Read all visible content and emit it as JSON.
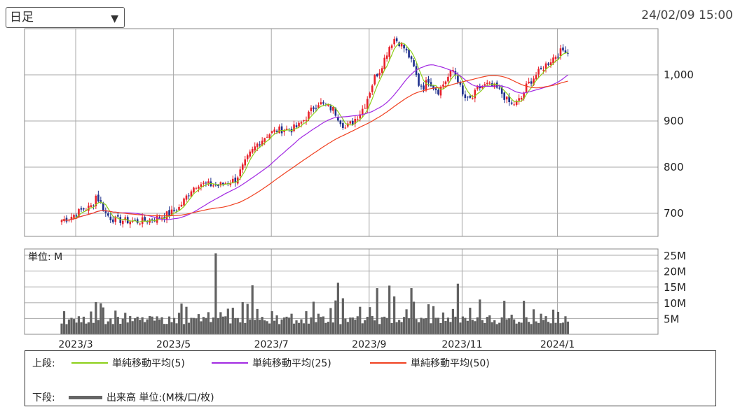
{
  "period_select": {
    "value": "日足",
    "options": [
      "日足"
    ]
  },
  "timestamp": "24/02/09 15:00",
  "colors": {
    "up": "#e8202a",
    "down": "#1d2f8c",
    "sma5": "#8ccf18",
    "sma25": "#a22ae2",
    "sma50": "#f04020",
    "volume": "#616161",
    "grid": "#a8a8a8"
  },
  "chart_data": {
    "type": "candlestick",
    "price_axis": {
      "range": [
        650,
        1100
      ],
      "ticks": [
        700,
        800,
        900,
        1000
      ],
      "tick_labels": [
        "700",
        "800",
        "900",
        "1,000"
      ]
    },
    "volume_axis": {
      "unit_label": "単位: M",
      "range": [
        0,
        27
      ],
      "ticks": [
        5,
        10,
        15,
        20,
        25
      ],
      "tick_labels": [
        "5M",
        "10M",
        "15M",
        "20M",
        "25M"
      ]
    },
    "x_axis": {
      "tick_labels": [
        "2023/3",
        "2023/5",
        "2023/7",
        "2023/9",
        "2023/11",
        "2024/1"
      ],
      "session_positions": [
        0,
        40,
        80,
        120,
        158,
        197
      ]
    },
    "price_anchors": [
      [
        0,
        685
      ],
      [
        3,
        690
      ],
      [
        6,
        700
      ],
      [
        9,
        710
      ],
      [
        11,
        712
      ],
      [
        12,
        715
      ],
      [
        13,
        722
      ],
      [
        14,
        738
      ],
      [
        16,
        722
      ],
      [
        18,
        700
      ],
      [
        20,
        690
      ],
      [
        22,
        686
      ],
      [
        26,
        684
      ],
      [
        30,
        682
      ],
      [
        34,
        684
      ],
      [
        38,
        688
      ],
      [
        42,
        695
      ],
      [
        45,
        702
      ],
      [
        48,
        712
      ],
      [
        50,
        728
      ],
      [
        53,
        752
      ],
      [
        56,
        765
      ],
      [
        60,
        762
      ],
      [
        64,
        760
      ],
      [
        68,
        768
      ],
      [
        71,
        772
      ],
      [
        74,
        800
      ],
      [
        77,
        828
      ],
      [
        80,
        850
      ],
      [
        84,
        870
      ],
      [
        88,
        880
      ],
      [
        91,
        882
      ],
      [
        94,
        882
      ],
      [
        97,
        890
      ],
      [
        100,
        908
      ],
      [
        103,
        930
      ],
      [
        105,
        940
      ],
      [
        108,
        932
      ],
      [
        111,
        925
      ],
      [
        114,
        900
      ],
      [
        116,
        885
      ],
      [
        119,
        898
      ],
      [
        122,
        918
      ],
      [
        124,
        935
      ],
      [
        126,
        965
      ],
      [
        128,
        995
      ],
      [
        130,
        1010
      ],
      [
        132,
        1035
      ],
      [
        134,
        1062
      ],
      [
        136,
        1078
      ],
      [
        138,
        1070
      ],
      [
        140,
        1058
      ],
      [
        142,
        1040
      ],
      [
        144,
        1015
      ],
      [
        146,
        980
      ],
      [
        148,
        975
      ],
      [
        150,
        990
      ],
      [
        152,
        975
      ],
      [
        154,
        965
      ],
      [
        156,
        980
      ],
      [
        158,
        995
      ],
      [
        160,
        1010
      ],
      [
        162,
        990
      ],
      [
        164,
        955
      ],
      [
        166,
        945
      ],
      [
        168,
        950
      ],
      [
        170,
        970
      ],
      [
        172,
        975
      ],
      [
        174,
        978
      ],
      [
        176,
        975
      ],
      [
        178,
        970
      ],
      [
        180,
        960
      ],
      [
        182,
        945
      ],
      [
        184,
        935
      ],
      [
        186,
        940
      ],
      [
        188,
        950
      ],
      [
        190,
        975
      ],
      [
        192,
        988
      ],
      [
        194,
        1000
      ],
      [
        196,
        1010
      ],
      [
        198,
        1022
      ],
      [
        200,
        1032
      ],
      [
        202,
        1042
      ],
      [
        204,
        1050
      ],
      [
        206,
        1055
      ],
      [
        207,
        1048
      ]
    ],
    "volume_baseline_M": 3.2,
    "volume_spikes": [
      [
        1,
        7.3
      ],
      [
        12,
        7.2
      ],
      [
        14,
        10.2
      ],
      [
        16,
        9.8
      ],
      [
        17,
        8.5
      ],
      [
        22,
        7.5
      ],
      [
        26,
        6.8
      ],
      [
        37,
        5.6
      ],
      [
        48,
        6.8
      ],
      [
        49,
        9.7
      ],
      [
        51,
        8.7
      ],
      [
        56,
        6.4
      ],
      [
        60,
        7
      ],
      [
        63,
        25.6
      ],
      [
        65,
        7
      ],
      [
        68,
        8.1
      ],
      [
        70,
        8.4
      ],
      [
        74,
        10.2
      ],
      [
        76,
        9.6
      ],
      [
        78,
        15.5
      ],
      [
        80,
        8
      ],
      [
        86,
        7.3
      ],
      [
        88,
        6
      ],
      [
        94,
        6.5
      ],
      [
        100,
        7.3
      ],
      [
        103,
        10.3
      ],
      [
        105,
        6.5
      ],
      [
        106,
        5.5
      ],
      [
        110,
        8.3
      ],
      [
        112,
        10.7
      ],
      [
        113,
        16.3
      ],
      [
        115,
        11.4
      ],
      [
        122,
        8.7
      ],
      [
        126,
        8.6
      ],
      [
        129,
        14.6
      ],
      [
        134,
        15.4
      ],
      [
        136,
        12
      ],
      [
        141,
        7.9
      ],
      [
        143,
        14.6
      ],
      [
        144,
        10.3
      ],
      [
        150,
        9.5
      ],
      [
        152,
        8.9
      ],
      [
        156,
        6.9
      ],
      [
        160,
        8
      ],
      [
        162,
        16
      ],
      [
        167,
        8.4
      ],
      [
        171,
        11
      ],
      [
        175,
        6
      ],
      [
        181,
        10.6
      ],
      [
        184,
        6.2
      ],
      [
        189,
        10.6
      ],
      [
        193,
        7.9
      ],
      [
        196,
        6.5
      ],
      [
        201,
        7.8
      ],
      [
        203,
        7.1
      ],
      [
        206,
        5.7
      ]
    ]
  },
  "legend": {
    "upper_label": "上段:",
    "lower_label": "下段:",
    "items": [
      {
        "label": "単純移動平均(5)"
      },
      {
        "label": "単純移動平均(25)"
      },
      {
        "label": "単純移動平均(50)"
      }
    ],
    "volume_label": "出来高 単位:(M株/口/枚)"
  }
}
